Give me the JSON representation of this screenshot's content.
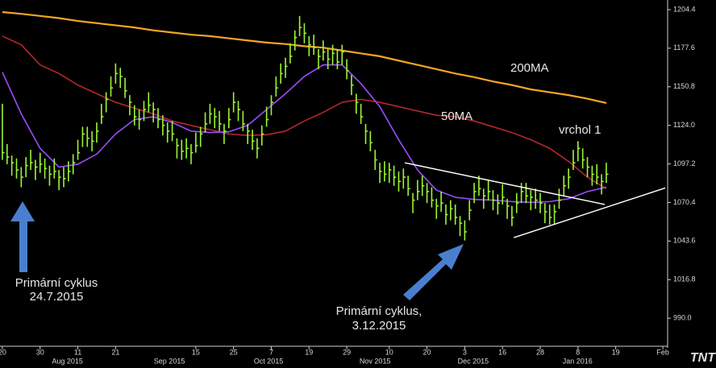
{
  "chart_data": {
    "type": "ohlc",
    "color": "#9cf534",
    "background": "#000000",
    "xlim": [
      -0.5,
      141
    ],
    "ylim": [
      970.5,
      1211.1
    ],
    "yticks": [
      1204.4,
      1177.6,
      1150.8,
      {
        "value": 1124.0,
        "label": "1124.0"
      },
      1097.2,
      1070.4,
      1043.6,
      1016.8,
      {
        "value": 990.0,
        "label": "990.0"
      }
    ],
    "xticks": [
      {
        "value": 0,
        "label": "20"
      },
      {
        "value": 8,
        "label": "30"
      },
      {
        "value": 16,
        "label": "11"
      },
      {
        "value": 24,
        "label": "21"
      },
      {
        "value": 41,
        "label": "15"
      },
      {
        "value": 49,
        "label": "25"
      },
      {
        "value": 57,
        "label": "7"
      },
      {
        "value": 65,
        "label": "19"
      },
      {
        "value": 73,
        "label": "29"
      },
      {
        "value": 82,
        "label": "10"
      },
      {
        "value": 90,
        "label": "20"
      },
      {
        "value": 98,
        "label": "3"
      },
      {
        "value": 106,
        "label": "16"
      },
      {
        "value": 114,
        "label": "28"
      },
      {
        "value": 122,
        "label": "8"
      },
      {
        "value": 130,
        "label": "19"
      },
      {
        "value": 140,
        "label": "Feb"
      }
    ],
    "month_labels": [
      {
        "value": 13.8,
        "label": "Aug 2015"
      },
      {
        "value": 35.4,
        "label": "Sep 2015"
      },
      {
        "value": 56.4,
        "label": "Oct 2015"
      },
      {
        "value": 79,
        "label": "Nov 2015"
      },
      {
        "value": 99.8,
        "label": "Dec 2015"
      },
      {
        "value": 121.9,
        "label": "Jan 2016"
      }
    ],
    "high": [
      1139,
      1111,
      1103,
      1101,
      1095,
      1102,
      1107,
      1100,
      1105,
      1101,
      1096,
      1101,
      1093,
      1095,
      1099,
      1104,
      1114,
      1123,
      1123,
      1120,
      1126,
      1139,
      1147,
      1158,
      1167,
      1164,
      1157,
      1145,
      1138,
      1135,
      1141,
      1147,
      1140,
      1136,
      1131,
      1126,
      1127,
      1115,
      1114,
      1115,
      1111,
      1119,
      1123,
      1133,
      1139,
      1136,
      1134,
      1125,
      1136,
      1147,
      1141,
      1134,
      1125,
      1121,
      1115,
      1124,
      1137,
      1145,
      1158,
      1167,
      1171,
      1181,
      1190,
      1200,
      1195,
      1186,
      1187,
      1177,
      1183,
      1177,
      1180,
      1177,
      1180,
      1170,
      1159,
      1146,
      1139,
      1125,
      1120,
      1107,
      1098,
      1099,
      1098,
      1096,
      1092,
      1094,
      1089,
      1077,
      1086,
      1089,
      1084,
      1081,
      1073,
      1078,
      1069,
      1072,
      1069,
      1061,
      1058,
      1072,
      1084,
      1089,
      1080,
      1086,
      1079,
      1076,
      1083,
      1073,
      1068,
      1077,
      1084,
      1084,
      1079,
      1080,
      1077,
      1070,
      1069,
      1069,
      1080,
      1089,
      1094,
      1107,
      1113,
      1108,
      1102,
      1096,
      1097,
      1090,
      1098
    ],
    "low": [
      1100,
      1097,
      1089,
      1087,
      1081,
      1088,
      1093,
      1086,
      1091,
      1087,
      1082,
      1087,
      1079,
      1081,
      1085,
      1090,
      1100,
      1109,
      1109,
      1106,
      1112,
      1125,
      1133,
      1144,
      1153,
      1150,
      1143,
      1131,
      1124,
      1121,
      1127,
      1133,
      1126,
      1122,
      1117,
      1112,
      1113,
      1101,
      1100,
      1101,
      1097,
      1105,
      1109,
      1119,
      1125,
      1122,
      1120,
      1111,
      1122,
      1133,
      1127,
      1120,
      1111,
      1107,
      1101,
      1110,
      1123,
      1131,
      1144,
      1153,
      1157,
      1167,
      1176,
      1186,
      1181,
      1172,
      1173,
      1163,
      1169,
      1163,
      1166,
      1163,
      1166,
      1156,
      1145,
      1132,
      1125,
      1111,
      1106,
      1093,
      1084,
      1085,
      1084,
      1082,
      1078,
      1080,
      1075,
      1063,
      1072,
      1075,
      1070,
      1067,
      1059,
      1064,
      1055,
      1058,
      1055,
      1047,
      1044,
      1058,
      1070,
      1075,
      1066,
      1072,
      1065,
      1062,
      1069,
      1059,
      1054,
      1063,
      1070,
      1070,
      1065,
      1066,
      1063,
      1056,
      1055,
      1055,
      1066,
      1075,
      1080,
      1093,
      1099,
      1094,
      1088,
      1082,
      1083,
      1076,
      1084
    ],
    "close": [
      1105,
      1102,
      1098,
      1093,
      1088,
      1096,
      1098,
      1095,
      1097,
      1094,
      1090,
      1092,
      1088,
      1087,
      1092,
      1098,
      1105,
      1118,
      1115,
      1113,
      1120,
      1130,
      1142,
      1150,
      1160,
      1158,
      1148,
      1140,
      1130,
      1128,
      1135,
      1138,
      1135,
      1128,
      1124,
      1120,
      1118,
      1110,
      1106,
      1108,
      1105,
      1110,
      1118,
      1125,
      1132,
      1130,
      1125,
      1120,
      1128,
      1140,
      1135,
      1125,
      1120,
      1113,
      1108,
      1118,
      1128,
      1140,
      1150,
      1160,
      1165,
      1172,
      1185,
      1192,
      1188,
      1180,
      1178,
      1172,
      1175,
      1170,
      1174,
      1168,
      1175,
      1162,
      1152,
      1140,
      1130,
      1120,
      1112,
      1100,
      1092,
      1090,
      1093,
      1088,
      1085,
      1088,
      1080,
      1072,
      1078,
      1082,
      1078,
      1072,
      1068,
      1070,
      1062,
      1066,
      1060,
      1056,
      1050,
      1065,
      1078,
      1080,
      1075,
      1078,
      1072,
      1070,
      1074,
      1068,
      1060,
      1070,
      1078,
      1075,
      1074,
      1072,
      1070,
      1064,
      1060,
      1064,
      1072,
      1082,
      1088,
      1098,
      1108,
      1100,
      1095,
      1090,
      1088,
      1085,
      1090
    ],
    "ma_x": [
      0,
      4,
      8,
      12,
      16,
      20,
      24,
      28,
      32,
      36,
      40,
      44,
      48,
      52,
      56,
      60,
      64,
      68,
      72,
      76,
      80,
      84,
      88,
      92,
      96,
      100,
      104,
      108,
      112,
      116,
      120,
      124,
      128
    ],
    "series": [
      {
        "color": "#f5a623",
        "values": [
          1202.7,
          1201.5,
          1200,
          1198.5,
          1196.5,
          1195,
          1193.5,
          1192,
          1190,
          1188.5,
          1187,
          1186,
          1184.5,
          1183,
          1181.5,
          1180.5,
          1179,
          1178,
          1176,
          1174,
          1172,
          1169,
          1166,
          1163,
          1160,
          1157.5,
          1154.5,
          1152,
          1149,
          1147,
          1145,
          1142.5,
          1139.5
        ]
      },
      {
        "color": "#b3282a",
        "values": [
          1186,
          1180,
          1166,
          1160,
          1152,
          1146,
          1140,
          1136,
          1132,
          1127,
          1124,
          1121,
          1118,
          1117,
          1117.5,
          1120,
          1127,
          1133,
          1140,
          1142,
          1140,
          1137,
          1134,
          1131,
          1130,
          1127,
          1123,
          1119,
          1114,
          1108,
          1099,
          1088,
          1080
        ]
      },
      {
        "color": "#9b4dff",
        "values": [
          1161,
          1132,
          1108,
          1095,
          1097,
          1104,
          1118,
          1128,
          1130,
          1126,
          1120,
          1119,
          1119.5,
          1124,
          1135,
          1146,
          1158,
          1166,
          1166,
          1153,
          1137,
          1114,
          1093,
          1079,
          1074,
          1072.5,
          1072,
          1071,
          1070.5,
          1071,
          1073,
          1078,
          1081
        ]
      }
    ],
    "trendlines": [
      {
        "x": [
          85.3,
          127.7
        ],
        "y": [
          1098,
          1069
        ]
      },
      {
        "x": [
          108.4,
          140.5
        ],
        "y": [
          1046,
          1080.5
        ]
      }
    ],
    "annotations": [
      "200MA",
      "50MA",
      "vrchol 1",
      "Primární cyklus",
      "24.7.2015",
      "Primární cyklus,",
      "3.12.2015"
    ],
    "logo": "TNT"
  }
}
